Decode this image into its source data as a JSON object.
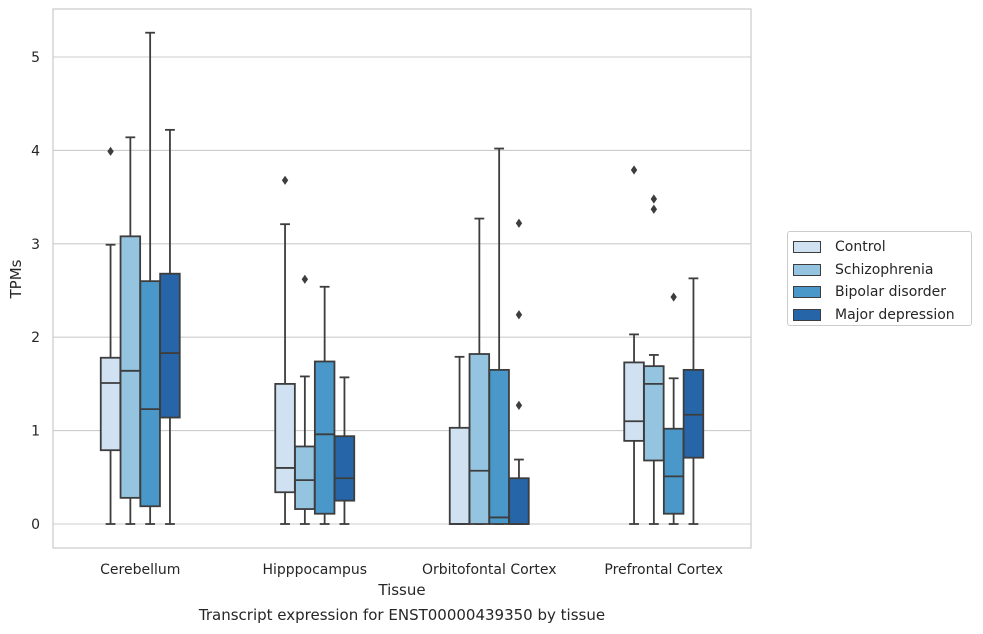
{
  "chart_data": {
    "type": "box",
    "ylabel": "TPMs",
    "xlabel": "Tissue",
    "caption": "Transcript expression for ENST00000439350 by tissue",
    "ylim": [
      -0.25,
      5.5
    ],
    "yticks": [
      0,
      1,
      2,
      3,
      4,
      5
    ],
    "grid": "horizontal",
    "legend_position": "right",
    "categories": [
      "Cerebellum",
      "Hipppocampus",
      "Orbitofontal Cortex",
      "Prefrontal Cortex"
    ],
    "series": [
      {
        "name": "Control",
        "color": "#d0e1f2",
        "boxes": [
          {
            "min": 0,
            "q1": 0.79,
            "median": 1.51,
            "q3": 1.78,
            "max": 2.99,
            "outliers": [
              3.99
            ]
          },
          {
            "min": 0,
            "q1": 0.34,
            "median": 0.6,
            "q3": 1.5,
            "max": 3.21,
            "outliers": [
              3.68
            ]
          },
          {
            "min": 0,
            "q1": 0,
            "median": 0,
            "q3": 1.03,
            "max": 1.79,
            "outliers": []
          },
          {
            "min": 0,
            "q1": 0.89,
            "median": 1.1,
            "q3": 1.73,
            "max": 2.03,
            "outliers": [
              3.79
            ]
          }
        ]
      },
      {
        "name": "Schizophrenia",
        "color": "#94c4df",
        "boxes": [
          {
            "min": 0,
            "q1": 0.28,
            "median": 1.64,
            "q3": 3.08,
            "max": 4.14,
            "outliers": []
          },
          {
            "min": 0,
            "q1": 0.16,
            "median": 0.47,
            "q3": 0.83,
            "max": 1.58,
            "outliers": [
              2.62
            ]
          },
          {
            "min": 0,
            "q1": 0,
            "median": 0.57,
            "q3": 1.82,
            "max": 3.27,
            "outliers": []
          },
          {
            "min": 0,
            "q1": 0.68,
            "median": 1.5,
            "q3": 1.69,
            "max": 1.81,
            "outliers": [
              3.37,
              3.48
            ]
          }
        ]
      },
      {
        "name": "Bipolar disorder",
        "color": "#4a98c9",
        "boxes": [
          {
            "min": 0,
            "q1": 0.19,
            "median": 1.23,
            "q3": 2.6,
            "max": 5.26,
            "outliers": []
          },
          {
            "min": 0,
            "q1": 0.11,
            "median": 0.96,
            "q3": 1.74,
            "max": 2.54,
            "outliers": []
          },
          {
            "min": 0,
            "q1": 0,
            "median": 0.07,
            "q3": 1.65,
            "max": 4.02,
            "outliers": []
          },
          {
            "min": 0,
            "q1": 0.11,
            "median": 0.51,
            "q3": 1.02,
            "max": 1.56,
            "outliers": [
              2.43
            ]
          }
        ]
      },
      {
        "name": "Major depression",
        "color": "#2565a8",
        "boxes": [
          {
            "min": 0,
            "q1": 1.14,
            "median": 1.83,
            "q3": 2.68,
            "max": 4.22,
            "outliers": []
          },
          {
            "min": 0,
            "q1": 0.25,
            "median": 0.49,
            "q3": 0.94,
            "max": 1.57,
            "outliers": []
          },
          {
            "min": 0,
            "q1": 0,
            "median": 0,
            "q3": 0.49,
            "max": 0.69,
            "outliers": [
              1.27,
              2.24,
              3.22
            ]
          },
          {
            "min": 0,
            "q1": 0.71,
            "median": 1.17,
            "q3": 1.65,
            "max": 2.63,
            "outliers": []
          }
        ]
      }
    ]
  }
}
